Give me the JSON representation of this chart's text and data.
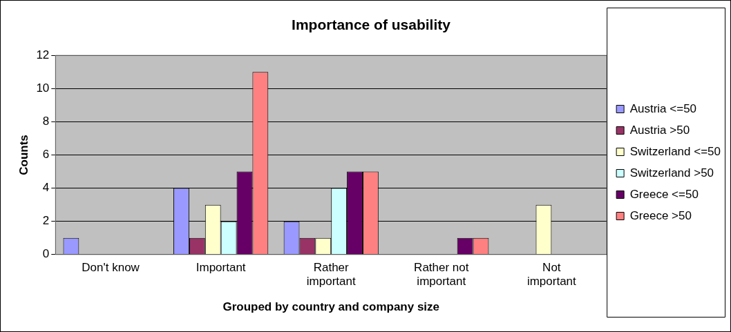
{
  "chart_data": {
    "type": "bar",
    "title": "Importance of usability",
    "xlabel": "Grouped by country and company size",
    "ylabel": "Counts",
    "categories": [
      "Don't know",
      "Important",
      "Rather important",
      "Rather not important",
      "Not important"
    ],
    "series": [
      {
        "name": "Austria <=50",
        "color": "#9999ff",
        "values": [
          1,
          4,
          2,
          0,
          0
        ]
      },
      {
        "name": "Austria >50",
        "color": "#993366",
        "values": [
          0,
          1,
          1,
          0,
          0
        ]
      },
      {
        "name": "Switzerland <=50",
        "color": "#ffffcc",
        "values": [
          0,
          3,
          1,
          0,
          3
        ]
      },
      {
        "name": "Switzerland >50",
        "color": "#ccffff",
        "values": [
          0,
          2,
          4,
          0,
          0
        ]
      },
      {
        "name": "Greece <=50",
        "color": "#660066",
        "values": [
          0,
          5,
          5,
          1,
          0
        ]
      },
      {
        "name": "Greece >50",
        "color": "#ff8080",
        "values": [
          0,
          11,
          5,
          1,
          0
        ]
      }
    ],
    "ylim": [
      0,
      12
    ],
    "yticks": [
      0,
      2,
      4,
      6,
      8,
      10,
      12
    ],
    "grid": "y",
    "legend": "right"
  }
}
